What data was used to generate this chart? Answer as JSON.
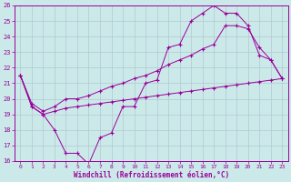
{
  "xlabel": "Windchill (Refroidissement éolien,°C)",
  "bg_color": "#cce9ea",
  "grid_color": "#b0c8d0",
  "line_color": "#990099",
  "xlim": [
    -0.5,
    23.5
  ],
  "ylim": [
    16,
    26
  ],
  "yticks": [
    16,
    17,
    18,
    19,
    20,
    21,
    22,
    23,
    24,
    25,
    26
  ],
  "xticks": [
    0,
    1,
    2,
    3,
    4,
    5,
    6,
    7,
    8,
    9,
    10,
    11,
    12,
    13,
    14,
    15,
    16,
    17,
    18,
    19,
    20,
    21,
    22,
    23
  ],
  "line1_x": [
    0,
    1,
    2,
    3,
    4,
    5,
    6,
    7,
    8,
    9,
    10,
    11,
    12,
    13,
    14,
    15,
    16,
    17,
    18,
    19,
    20,
    21,
    22,
    23
  ],
  "line1_y": [
    21.5,
    19.5,
    19.0,
    18.0,
    16.5,
    16.5,
    15.8,
    17.5,
    17.8,
    19.5,
    19.5,
    21.0,
    21.2,
    23.3,
    23.5,
    25.0,
    25.5,
    26.0,
    25.5,
    25.5,
    24.7,
    22.8,
    22.5,
    21.3
  ],
  "line2_x": [
    0,
    1,
    2,
    3,
    4,
    5,
    6,
    7,
    8,
    9,
    10,
    11,
    12,
    13,
    14,
    15,
    16,
    17,
    18,
    19,
    20,
    21,
    22,
    23
  ],
  "line2_y": [
    21.5,
    19.7,
    19.2,
    19.5,
    20.0,
    20.0,
    20.2,
    20.5,
    20.8,
    21.0,
    21.3,
    21.5,
    21.8,
    22.2,
    22.5,
    22.8,
    23.2,
    23.5,
    24.7,
    24.7,
    24.5,
    23.3,
    22.5,
    21.3
  ],
  "line3_x": [
    0,
    1,
    2,
    3,
    4,
    5,
    6,
    7,
    8,
    9,
    10,
    11,
    12,
    13,
    14,
    15,
    16,
    17,
    18,
    19,
    20,
    21,
    22,
    23
  ],
  "line3_y": [
    21.5,
    19.5,
    19.0,
    19.2,
    19.4,
    19.5,
    19.6,
    19.7,
    19.8,
    19.9,
    20.0,
    20.1,
    20.2,
    20.3,
    20.4,
    20.5,
    20.6,
    20.7,
    20.8,
    20.9,
    21.0,
    21.1,
    21.2,
    21.3
  ]
}
